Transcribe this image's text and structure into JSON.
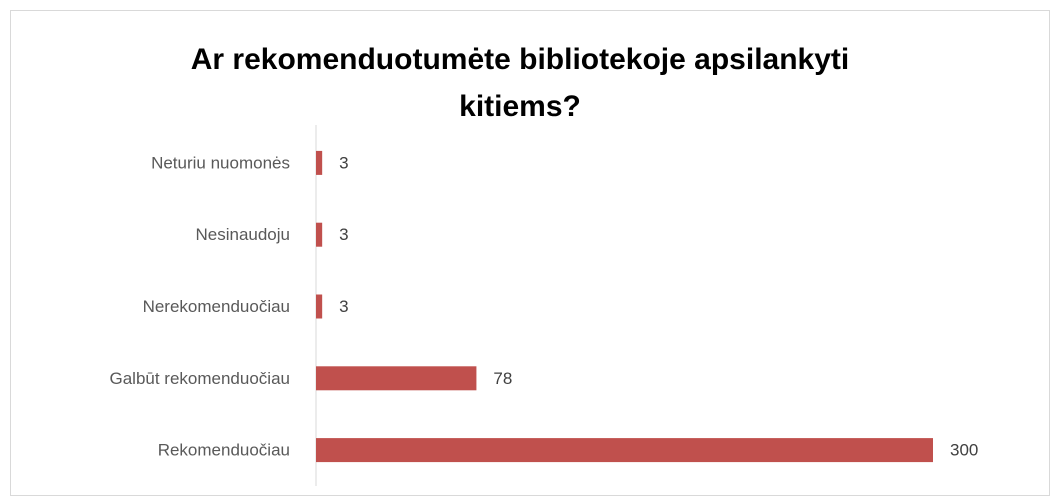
{
  "chart_data": {
    "type": "bar",
    "orientation": "horizontal",
    "title": "Ar rekomenduotumėte bibliotekoje apsilankyti kitiems?",
    "categories": [
      "Neturiu nuomonės",
      "Nesinaudoju",
      "Nerekomenduočiau",
      "Galbūt rekomenduočiau",
      "Rekomenduočiau"
    ],
    "values": [
      3,
      3,
      3,
      78,
      300
    ],
    "color": "#c0504d"
  }
}
